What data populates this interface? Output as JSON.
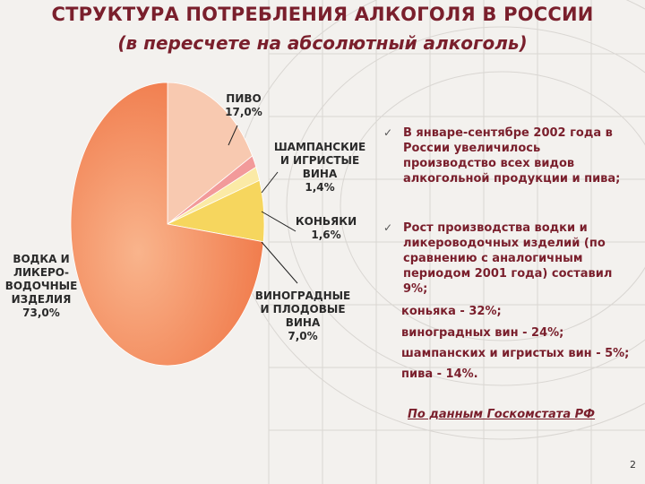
{
  "title": "СТРУКТУРА ПОТРЕБЛЕНИЯ АЛКОГОЛЯ В РОССИИ",
  "subtitle": "(в пересчете на абсолютный алкоголь)",
  "chart_data": {
    "type": "pie",
    "title": "",
    "slices": [
      {
        "label": "ПИВО\n17,0%",
        "value": 17.0,
        "color": "#f8c9b0"
      },
      {
        "label": "ШАМПАНСКИЕ\nИ ИГРИСТЫЕ\nВИНА\n1,4%",
        "value": 1.4,
        "color": "#f29a9a"
      },
      {
        "label": "КОНЬЯКИ\n1,6%",
        "value": 1.6,
        "color": "#fbeaa6"
      },
      {
        "label": "ВИНОГРАДНЫЕ\nИ ПЛОДОВЫЕ\nВИНА\n7,0%",
        "value": 7.0,
        "color": "#f6d65e"
      },
      {
        "label": "ВОДКА И\nЛИКЕРО-\nВОДОЧНЫЕ\nИЗДЕЛИЯ\n73,0%",
        "value": 73.0,
        "color": "#f48a5a"
      }
    ]
  },
  "bullets": [
    "В январе-сентябре 2002 года в России увеличилось производство всех видов алкогольной продукции и пива;",
    "Рост производства водки и ликероводочных изделий (по сравнению с аналогичным периодом 2001 года) составил 9%;"
  ],
  "rows": [
    "коньяка - 32%;",
    "виноградных вин - 24%;",
    "шампанских и игристых вин - 5%;",
    "пива - 14%."
  ],
  "source": "По данным Госкомстата РФ",
  "page_number": "2"
}
